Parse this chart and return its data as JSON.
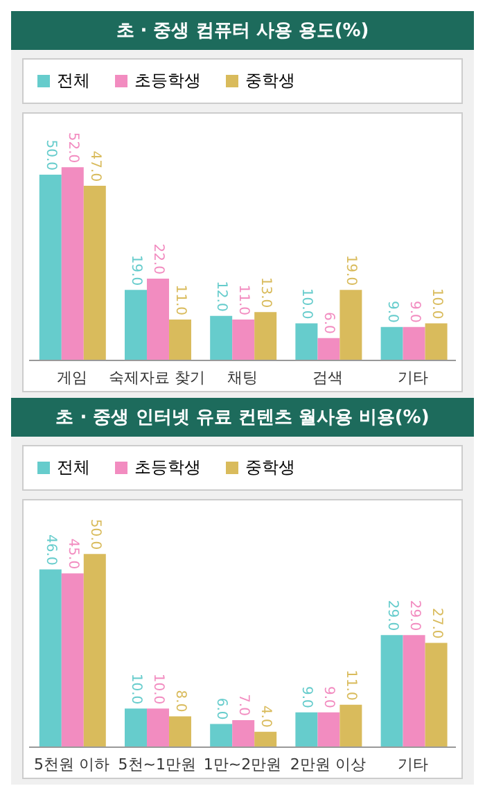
{
  "chart_data": [
    {
      "type": "bar",
      "title": "초 · 중생 컴퓨터 사용 용도(%)",
      "legend": "top left",
      "categories": [
        "게임",
        "숙제자료 찾기",
        "채팅",
        "검색",
        "기타"
      ],
      "series": [
        {
          "name": "전체",
          "color": "#66cccc",
          "values": [
            50,
            19,
            12,
            10,
            9
          ],
          "value_labels": [
            "50.0",
            "19.0",
            "12.0",
            "10.0",
            "9.0"
          ]
        },
        {
          "name": "초등학생",
          "color": "#f28cc0",
          "values": [
            52,
            22,
            11,
            6,
            9
          ],
          "value_labels": [
            "52.0",
            "22.0",
            "11.0",
            "6.0",
            "9.0"
          ]
        },
        {
          "name": "중학생",
          "color": "#d9bb5c",
          "values": [
            47,
            11,
            13,
            19,
            10
          ],
          "value_labels": [
            "47.0",
            "11.0",
            "13.0",
            "19.0",
            "10.0"
          ]
        }
      ]
    },
    {
      "type": "bar",
      "title": "초 · 중생 인터넷 유료 컨텐츠 월사용 비용(%)",
      "legend": "top left",
      "categories": [
        "5천원 이하",
        "5천~1만원",
        "1만~2만원",
        "2만원 이상",
        "기타"
      ],
      "series": [
        {
          "name": "전체",
          "color": "#66cccc",
          "values": [
            46,
            10,
            6,
            9,
            29
          ],
          "value_labels": [
            "46.0",
            "10.0",
            "6.0",
            "9.0",
            "29.0"
          ]
        },
        {
          "name": "초등학생",
          "color": "#f28cc0",
          "values": [
            45,
            10,
            7,
            9,
            29
          ],
          "value_labels": [
            "45.0",
            "10.0",
            "7.0",
            "9.0",
            "29.0"
          ]
        },
        {
          "name": "중학생",
          "color": "#d9bb5c",
          "values": [
            50,
            8,
            4,
            11,
            27
          ],
          "value_labels": [
            "50.0",
            "8.0",
            "4.0",
            "11.0",
            "27.0"
          ]
        }
      ]
    }
  ]
}
